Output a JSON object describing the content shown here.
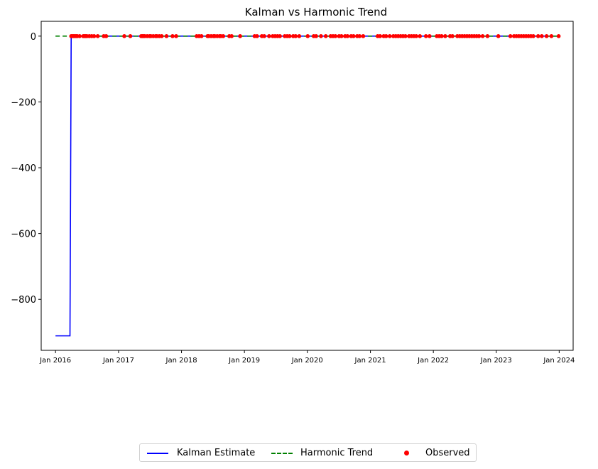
{
  "chart_data": {
    "type": "line",
    "title": "Kalman vs Harmonic Trend",
    "xlabel": "",
    "ylabel": "",
    "xlim": [
      "2015-10-10",
      "2024-03-22"
    ],
    "ylim": [
      -955,
      45
    ],
    "yticks": [
      0,
      -200,
      -400,
      -600,
      -800
    ],
    "ytick_labels": [
      "0",
      "−200",
      "−400",
      "−600",
      "−800"
    ],
    "xticks": [
      "2016-01-01",
      "2017-01-01",
      "2018-01-01",
      "2019-01-01",
      "2020-01-01",
      "2021-01-01",
      "2022-01-01",
      "2023-01-01",
      "2024-01-01"
    ],
    "xtick_labels": [
      "Jan 2016",
      "Jan 2017",
      "Jan 2018",
      "Jan 2019",
      "Jan 2020",
      "Jan 2021",
      "Jan 2022",
      "Jan 2023",
      "Jan 2024"
    ],
    "legend_position": "bottom-center",
    "grid": false,
    "series": [
      {
        "name": "Kalman Estimate",
        "style": "solid",
        "color": "#0000ff",
        "points": [
          [
            "2016-01-01",
            -911
          ],
          [
            "2016-03-25",
            -911
          ],
          [
            "2016-04-01",
            0
          ],
          [
            "2023-12-29",
            0
          ]
        ]
      },
      {
        "name": "Harmonic Trend",
        "style": "dashed",
        "color": "#008000",
        "points": [
          [
            "2016-01-01",
            0
          ],
          [
            "2023-12-29",
            0
          ]
        ]
      },
      {
        "name": "Observed",
        "style": "scatter",
        "color": "#ff0000",
        "y_value": 0,
        "dates": [
          "2016-04-01",
          "2016-04-08",
          "2016-04-15",
          "2016-04-22",
          "2016-04-29",
          "2016-05-06",
          "2016-05-20",
          "2016-06-10",
          "2016-06-17",
          "2016-06-24",
          "2016-07-01",
          "2016-07-15",
          "2016-07-29",
          "2016-08-12",
          "2016-09-02",
          "2016-10-07",
          "2016-10-21",
          "2017-02-03",
          "2017-03-10",
          "2017-05-12",
          "2017-05-19",
          "2017-05-26",
          "2017-06-02",
          "2017-06-16",
          "2017-06-30",
          "2017-07-07",
          "2017-07-21",
          "2017-08-04",
          "2017-08-11",
          "2017-08-25",
          "2017-09-08",
          "2017-10-06",
          "2017-11-10",
          "2017-12-01",
          "2018-03-30",
          "2018-04-13",
          "2018-04-27",
          "2018-06-01",
          "2018-06-08",
          "2018-06-22",
          "2018-07-06",
          "2018-07-13",
          "2018-07-27",
          "2018-08-10",
          "2018-08-17",
          "2018-08-31",
          "2018-10-05",
          "2018-10-19",
          "2018-12-07",
          "2019-03-01",
          "2019-03-15",
          "2019-04-12",
          "2019-04-26",
          "2019-05-24",
          "2019-06-14",
          "2019-06-28",
          "2019-07-12",
          "2019-07-26",
          "2019-08-23",
          "2019-09-06",
          "2019-09-20",
          "2019-10-11",
          "2019-10-25",
          "2019-11-15",
          "2020-01-03",
          "2020-02-07",
          "2020-02-21",
          "2020-03-20",
          "2020-04-17",
          "2020-05-15",
          "2020-05-29",
          "2020-06-12",
          "2020-07-03",
          "2020-07-17",
          "2020-08-07",
          "2020-08-21",
          "2020-09-11",
          "2020-09-25",
          "2020-10-16",
          "2020-10-30",
          "2020-11-20",
          "2021-02-12",
          "2021-02-26",
          "2021-03-19",
          "2021-04-02",
          "2021-04-23",
          "2021-05-14",
          "2021-05-28",
          "2021-06-11",
          "2021-06-25",
          "2021-07-09",
          "2021-07-23",
          "2021-08-13",
          "2021-08-27",
          "2021-09-10",
          "2021-09-24",
          "2021-10-15",
          "2021-11-19",
          "2021-12-10",
          "2022-01-21",
          "2022-02-04",
          "2022-02-18",
          "2022-03-11",
          "2022-04-08",
          "2022-04-22",
          "2022-05-20",
          "2022-06-03",
          "2022-06-17",
          "2022-07-01",
          "2022-07-15",
          "2022-07-29",
          "2022-08-12",
          "2022-08-26",
          "2022-09-09",
          "2022-09-23",
          "2022-10-14",
          "2022-11-11",
          "2023-01-13",
          "2023-03-24",
          "2023-04-14",
          "2023-04-28",
          "2023-05-12",
          "2023-05-26",
          "2023-06-09",
          "2023-06-23",
          "2023-07-07",
          "2023-07-21",
          "2023-08-04",
          "2023-09-01",
          "2023-09-22",
          "2023-10-20",
          "2023-11-17",
          "2023-12-29"
        ]
      }
    ]
  }
}
